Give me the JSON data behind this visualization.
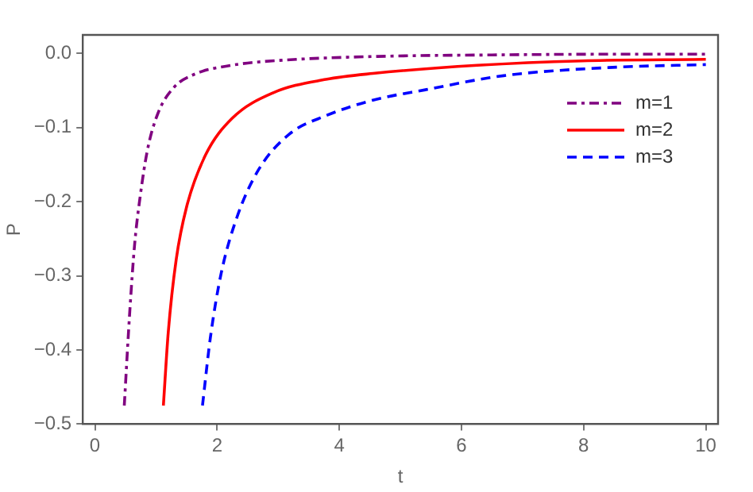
{
  "chart_data": {
    "type": "line",
    "xlabel": "t",
    "ylabel": "P",
    "xlim": [
      -0.2,
      10.2
    ],
    "ylim": [
      -0.5,
      0.025
    ],
    "xticks": [
      0,
      2,
      4,
      6,
      8,
      10
    ],
    "yticks": [
      {
        "value": -0.5,
        "label": "−0.5"
      },
      {
        "value": -0.4,
        "label": "−0.4"
      },
      {
        "value": -0.3,
        "label": "−0.3"
      },
      {
        "value": -0.2,
        "label": "−0.2"
      },
      {
        "value": -0.1,
        "label": "−0.1"
      },
      {
        "value": 0,
        "label": "0.0"
      }
    ],
    "grid": false,
    "legend": "top right",
    "marker": "none",
    "series": [
      {
        "name": "m=1",
        "color": "#800080",
        "line_style": "dashdot",
        "x": [
          0.48,
          0.57,
          0.65,
          0.74,
          0.86,
          1.03,
          1.29,
          1.63,
          2.23,
          3.09,
          4.63,
          6.5,
          8.5,
          10
        ],
        "values": [
          -0.475,
          -0.348,
          -0.257,
          -0.193,
          -0.13,
          -0.081,
          -0.046,
          -0.028,
          -0.016,
          -0.009,
          -0.004,
          -0.002,
          -0.001,
          -0.001
        ]
      },
      {
        "name": "m=2",
        "color": "#ff0000",
        "line_style": "solid",
        "x": [
          1.12,
          1.2,
          1.33,
          1.5,
          1.81,
          2.24,
          2.92,
          3.78,
          4.55,
          6.26,
          7.97,
          10
        ],
        "values": [
          -0.475,
          -0.376,
          -0.278,
          -0.207,
          -0.137,
          -0.088,
          -0.053,
          -0.035,
          -0.027,
          -0.016,
          -0.01,
          -0.008
        ]
      },
      {
        "name": "m=3",
        "color": "#0000ff",
        "line_style": "dashed",
        "x": [
          1.76,
          1.89,
          2.06,
          2.32,
          2.67,
          3.18,
          3.78,
          4.55,
          5.41,
          6.69,
          8.41,
          10
        ],
        "values": [
          -0.475,
          -0.383,
          -0.299,
          -0.222,
          -0.158,
          -0.109,
          -0.084,
          -0.063,
          -0.049,
          -0.03,
          -0.019,
          -0.015
        ]
      }
    ]
  }
}
